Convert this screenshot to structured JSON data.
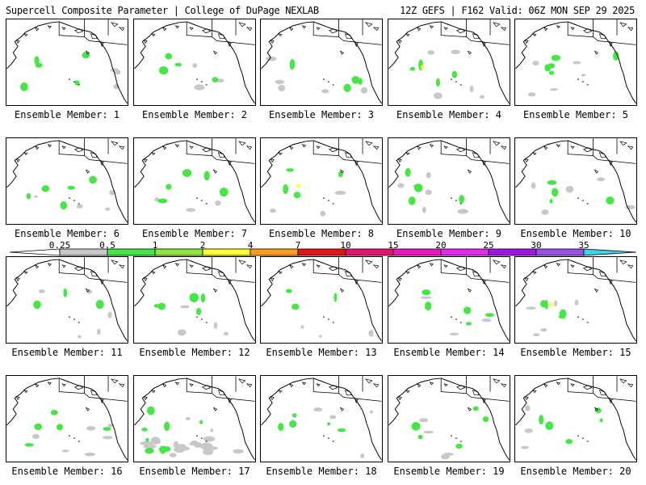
{
  "header": {
    "title": "Supercell Composite Parameter | College of DuPage NEXLAB",
    "run_info": "12Z GEFS | F162 Valid: 06Z MON SEP 29 2025"
  },
  "members": [
    {
      "label": "Ensemble Member: 1"
    },
    {
      "label": "Ensemble Member: 2"
    },
    {
      "label": "Ensemble Member: 3"
    },
    {
      "label": "Ensemble Member: 4"
    },
    {
      "label": "Ensemble Member: 5"
    },
    {
      "label": "Ensemble Member: 6"
    },
    {
      "label": "Ensemble Member: 7"
    },
    {
      "label": "Ensemble Member: 8"
    },
    {
      "label": "Ensemble Member: 9"
    },
    {
      "label": "Ensemble Member: 10"
    },
    {
      "label": "Ensemble Member: 11"
    },
    {
      "label": "Ensemble Member: 12"
    },
    {
      "label": "Ensemble Member: 13"
    },
    {
      "label": "Ensemble Member: 14"
    },
    {
      "label": "Ensemble Member: 15"
    },
    {
      "label": "Ensemble Member: 16"
    },
    {
      "label": "Ensemble Member: 17"
    },
    {
      "label": "Ensemble Member: 18"
    },
    {
      "label": "Ensemble Member: 19"
    },
    {
      "label": "Ensemble Member: 20"
    }
  ],
  "colorbar": {
    "ticks": [
      "0.25",
      "0.5",
      "1",
      "2",
      "4",
      "7",
      "10",
      "15",
      "20",
      "25",
      "30",
      "35"
    ],
    "colors": [
      "#c8c8c8",
      "#46e646",
      "#8ce63c",
      "#ffff32",
      "#ff9b1e",
      "#e61414",
      "#e6146e",
      "#f014be",
      "#e628f0",
      "#a014e6",
      "#9b50e6",
      "#3cd7e6"
    ],
    "under_color": "#ffffff",
    "over_color": "#3cd7e6"
  }
}
